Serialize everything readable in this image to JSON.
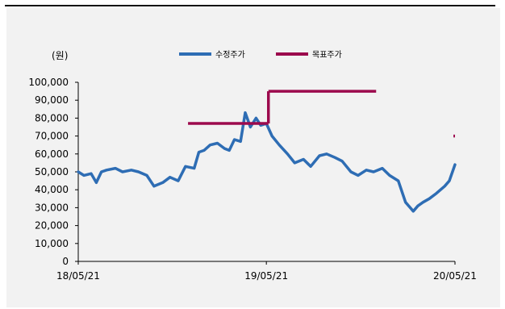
{
  "chart_data": {
    "type": "line",
    "unit_label": "(원)",
    "colors": {
      "수정주가": "#2e6db4",
      "목표주가": "#9c0a4d",
      "axis": "#000000",
      "background": "#f2f2f2"
    },
    "y_ticks": [
      "100,000",
      "90,000",
      "80,000",
      "70,000",
      "60,000",
      "50,000",
      "40,000",
      "30,000",
      "20,000",
      "10,000",
      "0"
    ],
    "x_ticks": [
      "18/05/21",
      "19/05/21",
      "20/05/21"
    ],
    "ylim": [
      0,
      100000
    ],
    "xlim": [
      "2018-05-21",
      "2020-05-21"
    ],
    "legend": [
      "수정주가",
      "목표주가"
    ],
    "legend_position": "top",
    "grid": false,
    "series": [
      {
        "name": "수정주가",
        "x": [
          "2018-05-21",
          "2018-06-01",
          "2018-06-15",
          "2018-06-25",
          "2018-07-05",
          "2018-07-15",
          "2018-08-01",
          "2018-08-15",
          "2018-09-01",
          "2018-09-15",
          "2018-10-01",
          "2018-10-15",
          "2018-11-01",
          "2018-11-15",
          "2018-12-01",
          "2018-12-15",
          "2019-01-01",
          "2019-01-10",
          "2019-01-20",
          "2019-02-01",
          "2019-02-15",
          "2019-03-01",
          "2019-03-10",
          "2019-03-20",
          "2019-04-01",
          "2019-04-10",
          "2019-04-20",
          "2019-05-01",
          "2019-05-10",
          "2019-05-21",
          "2019-06-01",
          "2019-06-15",
          "2019-07-01",
          "2019-07-15",
          "2019-08-01",
          "2019-08-15",
          "2019-09-01",
          "2019-09-15",
          "2019-10-01",
          "2019-10-15",
          "2019-11-01",
          "2019-11-15",
          "2019-12-01",
          "2019-12-15",
          "2020-01-01",
          "2020-01-15",
          "2020-02-01",
          "2020-02-15",
          "2020-03-01",
          "2020-03-10",
          "2020-03-20",
          "2020-04-01",
          "2020-04-15",
          "2020-05-01",
          "2020-05-10",
          "2020-05-21"
        ],
        "y": [
          50000,
          48000,
          49000,
          44000,
          50000,
          51000,
          52000,
          50000,
          51000,
          50000,
          48000,
          42000,
          44000,
          47000,
          45000,
          53000,
          52000,
          61000,
          62000,
          65000,
          66000,
          63000,
          62000,
          68000,
          67000,
          83000,
          75000,
          80000,
          76000,
          77000,
          70000,
          65000,
          60000,
          55000,
          57000,
          53000,
          59000,
          60000,
          58000,
          56000,
          50000,
          48000,
          51000,
          50000,
          52000,
          48000,
          45000,
          33000,
          28000,
          31000,
          33000,
          35000,
          38000,
          42000,
          45000,
          54000
        ]
      },
      {
        "name": "목표주가",
        "segments": [
          {
            "x": [
              "2018-12-20",
              "2019-05-25"
            ],
            "y": [
              77000,
              77000
            ]
          },
          {
            "x": [
              "2019-05-25",
              "2019-05-25"
            ],
            "y": [
              77000,
              95000
            ]
          },
          {
            "x": [
              "2019-05-25",
              "2019-12-20"
            ],
            "y": [
              95000,
              95000
            ]
          },
          {
            "x": [
              "2020-05-18",
              "2020-05-21"
            ],
            "y": [
              70000,
              70000
            ]
          }
        ]
      }
    ]
  }
}
